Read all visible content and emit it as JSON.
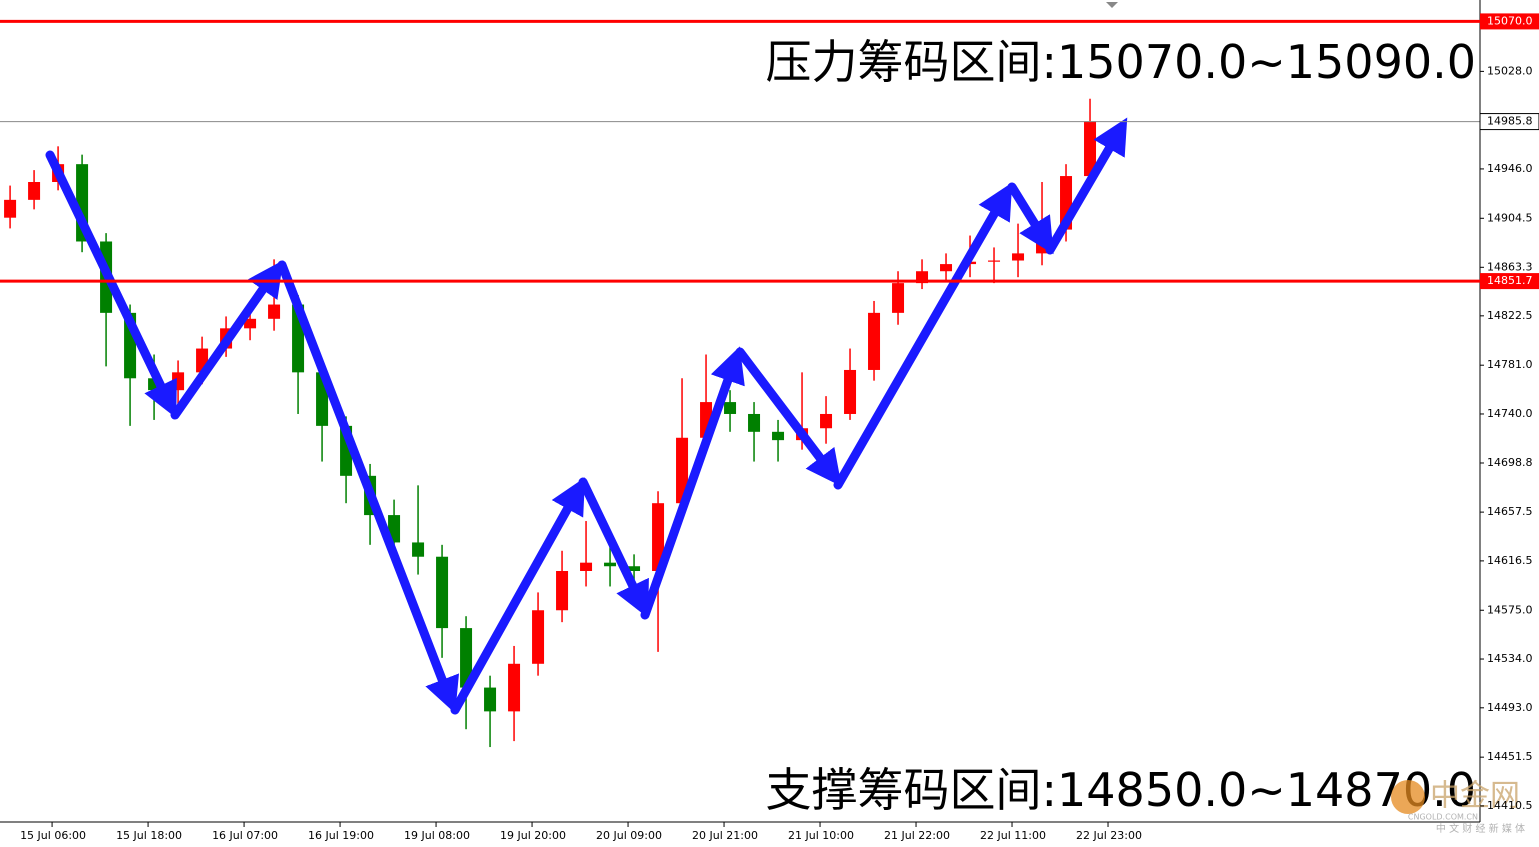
{
  "chart_data": {
    "type": "candlestick",
    "xlim": [
      -0.42,
      61.25
    ],
    "xticks": [
      {
        "value": 1.75,
        "label": "15 Jul 06:00"
      },
      {
        "value": 5.75,
        "label": "15 Jul 18:00"
      },
      {
        "value": 9.75,
        "label": "16 Jul 07:00"
      },
      {
        "value": 13.75,
        "label": "16 Jul 19:00"
      },
      {
        "value": 17.75,
        "label": "19 Jul 08:00"
      },
      {
        "value": 21.75,
        "label": "19 Jul 20:00"
      },
      {
        "value": 25.75,
        "label": "20 Jul 09:00"
      },
      {
        "value": 29.75,
        "label": "20 Jul 21:00"
      },
      {
        "value": 33.75,
        "label": "21 Jul 10:00"
      },
      {
        "value": 37.75,
        "label": "21 Jul 22:00"
      },
      {
        "value": 41.75,
        "label": "22 Jul 11:00"
      },
      {
        "value": 45.75,
        "label": "22 Jul 23:00"
      }
    ],
    "ylim": [
      14397,
      15088
    ],
    "yticks": [
      {
        "value": 15028,
        "label": "15028.0"
      },
      {
        "value": 14946,
        "label": "14946.0"
      },
      {
        "value": 14904.5,
        "label": "14904.5"
      },
      {
        "value": 14863.3,
        "label": "14863.3"
      },
      {
        "value": 14822.5,
        "label": "14822.5"
      },
      {
        "value": 14781,
        "label": "14781.0"
      },
      {
        "value": 14740,
        "label": "14740.0"
      },
      {
        "value": 14698.8,
        "label": "14698.8"
      },
      {
        "value": 14657.5,
        "label": "14657.5"
      },
      {
        "value": 14616.5,
        "label": "14616.5"
      },
      {
        "value": 14575,
        "label": "14575.0"
      },
      {
        "value": 14534,
        "label": "14534.0"
      },
      {
        "value": 14493,
        "label": "14493.0"
      },
      {
        "value": 14451.5,
        "label": "14451.5"
      },
      {
        "value": 14410.5,
        "label": "14410.5"
      }
    ],
    "candles": {
      "open": [
        14905,
        14920,
        14935,
        14950,
        14885,
        14825,
        14770,
        14760,
        14775,
        14795,
        14812,
        14820,
        14832,
        14775,
        14730,
        14688,
        14655,
        14632,
        14620,
        14560,
        14510,
        14490,
        14530,
        14575,
        14608,
        14615,
        14612,
        14608,
        14665,
        14720,
        14750,
        14740,
        14725,
        14718,
        14728,
        14740,
        14777,
        14825,
        14850,
        14860,
        14866,
        14868,
        14869,
        14875,
        14895,
        14940
      ],
      "high": [
        14932,
        14945,
        14965,
        14958,
        14892,
        14832,
        14790,
        14785,
        14805,
        14822,
        14835,
        14870,
        14840,
        14782,
        14738,
        14698,
        14668,
        14680,
        14630,
        14570,
        14520,
        14545,
        14590,
        14625,
        14650,
        14630,
        14622,
        14675,
        14770,
        14790,
        14760,
        14750,
        14735,
        14775,
        14755,
        14795,
        14835,
        14860,
        14870,
        14875,
        14890,
        14880,
        14900,
        14935,
        14950,
        15005
      ],
      "low": [
        14896,
        14912,
        14928,
        14876,
        14780,
        14730,
        14735,
        14748,
        14765,
        14788,
        14802,
        14810,
        14740,
        14700,
        14665,
        14630,
        14620,
        14605,
        14535,
        14475,
        14460,
        14465,
        14520,
        14565,
        14595,
        14595,
        14580,
        14540,
        14655,
        14712,
        14725,
        14700,
        14700,
        14710,
        14715,
        14735,
        14768,
        14815,
        14845,
        14852,
        14855,
        14850,
        14855,
        14865,
        14885,
        14930
      ],
      "close": [
        14920,
        14935,
        14950,
        14885,
        14825,
        14770,
        14760,
        14775,
        14795,
        14812,
        14820,
        14832,
        14775,
        14730,
        14688,
        14655,
        14632,
        14620,
        14560,
        14510,
        14490,
        14530,
        14575,
        14608,
        14615,
        14612,
        14608,
        14665,
        14720,
        14750,
        14740,
        14725,
        14718,
        14728,
        14740,
        14777,
        14825,
        14850,
        14860,
        14866,
        14868,
        14869,
        14875,
        14895,
        14940,
        14986
      ]
    },
    "up_color": "#ff0000",
    "down_color": "#008000",
    "levels": [
      {
        "value": 15070,
        "label": "15070.0",
        "color": "#ff0000"
      },
      {
        "value": 14851.7,
        "label": "14851.7",
        "color": "#ff0000"
      }
    ],
    "last_price": {
      "value": 14985.8,
      "label": "14985.8"
    },
    "annotations": [
      "压力筹码区间:15070.0~15090.0",
      "支撑筹码区间:14850.0~14870.0"
    ],
    "watermark": {
      "name": "中金网",
      "url": "CNGOLD.COM.CN",
      "slogan": "中 文 财 经 新 媒 体"
    }
  }
}
